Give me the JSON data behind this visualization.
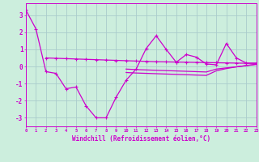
{
  "xlabel": "Windchill (Refroidissement éolien,°C)",
  "x": [
    0,
    1,
    2,
    3,
    4,
    5,
    6,
    7,
    8,
    9,
    10,
    11,
    12,
    13,
    14,
    15,
    16,
    17,
    18,
    19,
    20,
    21,
    22,
    23
  ],
  "line_main": [
    3.3,
    2.2,
    -0.3,
    -0.4,
    -1.3,
    -1.2,
    -2.3,
    -3.0,
    -3.0,
    -1.8,
    -0.8,
    -0.15,
    1.05,
    1.8,
    1.0,
    0.25,
    0.7,
    0.55,
    0.15,
    0.1,
    1.35,
    0.5,
    0.2,
    0.2
  ],
  "line_flat_upper": [
    null,
    null,
    0.5,
    0.48,
    0.46,
    0.44,
    0.42,
    0.4,
    0.38,
    0.36,
    0.34,
    0.32,
    0.3,
    0.28,
    0.27,
    0.26,
    0.25,
    0.24,
    0.23,
    0.22,
    0.21,
    0.2,
    0.19,
    0.18
  ],
  "line_flat_lower": [
    null,
    null,
    null,
    null,
    null,
    null,
    null,
    null,
    null,
    null,
    -0.15,
    -0.18,
    -0.2,
    -0.22,
    -0.24,
    -0.26,
    -0.28,
    -0.3,
    -0.32,
    -0.15,
    -0.08,
    -0.02,
    0.05,
    0.12
  ],
  "line_flat_bottom": [
    null,
    null,
    null,
    null,
    null,
    null,
    null,
    null,
    null,
    null,
    -0.35,
    -0.38,
    -0.4,
    -0.42,
    -0.44,
    -0.46,
    -0.48,
    -0.5,
    -0.52,
    -0.25,
    -0.12,
    -0.02,
    0.06,
    0.14
  ],
  "bg_color": "#cceedd",
  "grid_color": "#aacccc",
  "line_color": "#cc00cc",
  "ylim": [
    -3.5,
    3.7
  ],
  "xlim": [
    0,
    23
  ],
  "yticks": [
    -3,
    -2,
    -1,
    0,
    1,
    2,
    3
  ],
  "xticks": [
    0,
    1,
    2,
    3,
    4,
    5,
    6,
    7,
    8,
    9,
    10,
    11,
    12,
    13,
    14,
    15,
    16,
    17,
    18,
    19,
    20,
    21,
    22,
    23
  ]
}
